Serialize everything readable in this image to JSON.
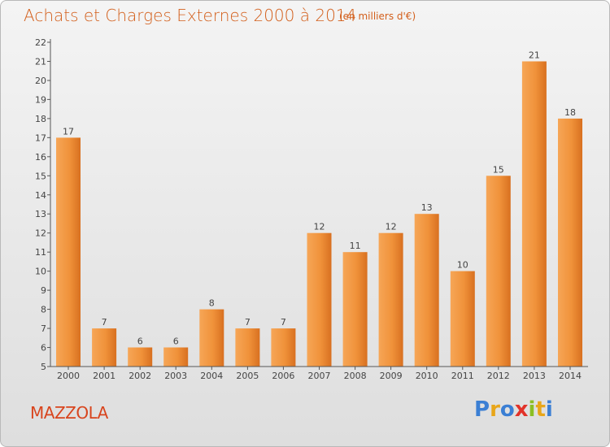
{
  "header": {
    "title": "Achats et Charges Externes 2000 à 2014",
    "subtitle": "(en milliers d'€)"
  },
  "footer": {
    "place": "MAZZOLA",
    "brand": "Proxiti",
    "brand_letters": [
      "P",
      "r",
      "o",
      "x",
      "i",
      "t",
      "i"
    ],
    "brand_colors": [
      "#3b7fd4",
      "#e8a61a",
      "#3b7fd4",
      "#e2332a",
      "#8bbf24",
      "#e8a61a",
      "#3b7fd4"
    ]
  },
  "chart_data": {
    "type": "bar",
    "title": "Achats et Charges Externes 2000 à 2014",
    "subtitle": "(en milliers d'€)",
    "categories": [
      "2000",
      "2001",
      "2002",
      "2003",
      "2004",
      "2005",
      "2006",
      "2007",
      "2008",
      "2009",
      "2010",
      "2011",
      "2012",
      "2013",
      "2014"
    ],
    "values": [
      17,
      7,
      6,
      6,
      8,
      7,
      7,
      12,
      11,
      12,
      13,
      10,
      15,
      21,
      18
    ],
    "ylim": [
      5,
      22
    ],
    "yticks": [
      5,
      6,
      7,
      8,
      9,
      10,
      11,
      12,
      13,
      14,
      15,
      16,
      17,
      18,
      19,
      20,
      21,
      22
    ],
    "grid": false,
    "bar_color": "#f0923a",
    "bar_color_light": "#f6a657",
    "bar_color_dark": "#d87020",
    "text_color": "#d35f1b",
    "axis_text_color": "#444444"
  }
}
